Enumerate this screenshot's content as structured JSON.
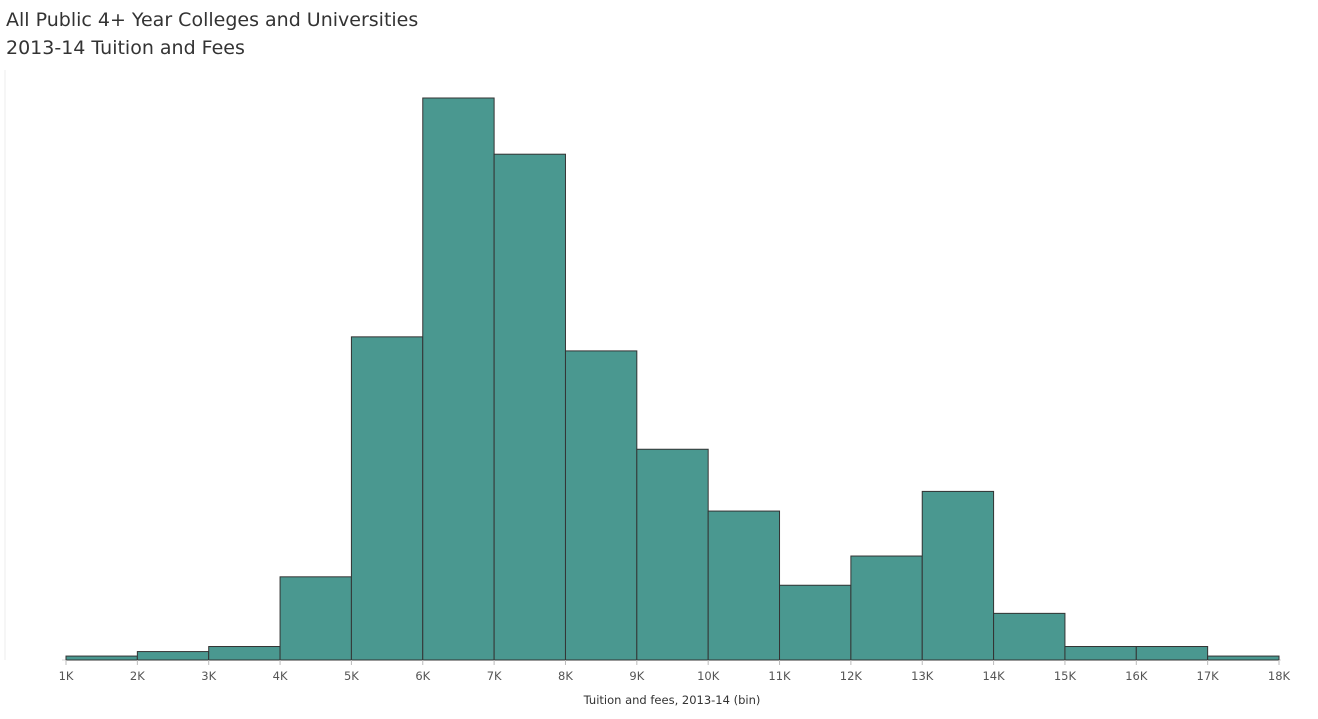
{
  "chart_data": {
    "type": "bar",
    "title": "All Public 4+ Year Colleges and Universities",
    "subtitle": "2013-14 Tuition and Fees",
    "xlabel": "Tuition and fees, 2013-14 (bin)",
    "ylabel": "",
    "x_ticks": [
      "1K",
      "2K",
      "3K",
      "4K",
      "5K",
      "6K",
      "7K",
      "8K",
      "9K",
      "10K",
      "11K",
      "12K",
      "13K",
      "14K",
      "15K",
      "16K",
      "17K",
      "18K"
    ],
    "bin_edges": [
      1000,
      2000,
      3000,
      4000,
      5000,
      6000,
      7000,
      8000,
      9000,
      10000,
      11000,
      12000,
      13000,
      14000,
      15000,
      16000,
      17000,
      18000
    ],
    "values": [
      0.7,
      1.5,
      2.4,
      14.8,
      57.5,
      100,
      90,
      55,
      37.5,
      26.5,
      13.3,
      18.5,
      30,
      8.3,
      2.4,
      2.4,
      0.7
    ],
    "ylim": [
      0,
      100
    ],
    "y_axis_shown": false,
    "grid": false,
    "legend": "none",
    "bar_color": "#4a9890",
    "bar_stroke": "#333333"
  }
}
